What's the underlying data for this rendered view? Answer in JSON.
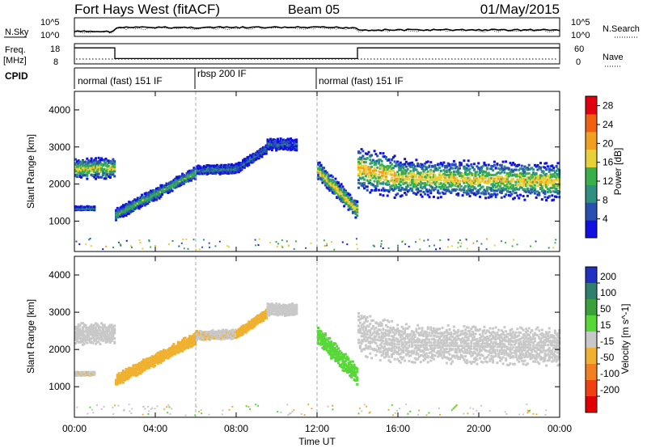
{
  "chart_data": {
    "type": "heatmap",
    "title": "Fort Hays West (fitACF)",
    "beam": "Beam 05",
    "date": "01/May/2015",
    "xlabel": "Time UT",
    "x_ticks": [
      "00:00",
      "04:00",
      "08:00",
      "12:00",
      "16:00",
      "20:00",
      "00:00"
    ],
    "xlim_hours": [
      0,
      24
    ],
    "grid": false,
    "noise_panel": {
      "left_label": "N.Sky",
      "right_label": "N.Search",
      "left_ticks": [
        "10^5",
        "10^0"
      ],
      "right_ticks": [
        "10^5",
        "10^0"
      ]
    },
    "freq_panel": {
      "left_label": "Freq.",
      "left_unit": "[MHz]",
      "left_ticks": [
        18,
        8
      ],
      "right_label": "Nave",
      "right_ticks": [
        60,
        0
      ],
      "freq_steps": [
        {
          "from": 0,
          "to": 2.0,
          "value": 17
        },
        {
          "from": 2.0,
          "to": 14.0,
          "value": 11
        },
        {
          "from": 14.0,
          "to": 24,
          "value": 17
        }
      ]
    },
    "cpid": {
      "label": "CPID",
      "segments": [
        {
          "from": 0,
          "to": 6.0,
          "label": "normal (fast) 151 IF"
        },
        {
          "from": 6.0,
          "to": 12.0,
          "label": "rbsp 200 IF"
        },
        {
          "from": 12.0,
          "to": 24,
          "label": "normal (fast) 151 IF"
        }
      ]
    },
    "power_panel": {
      "ylabel": "Slant Range [km]",
      "ylim": [
        180,
        4500
      ],
      "yticks": [
        1000,
        2000,
        3000,
        4000
      ],
      "colorbar_label": "Power [dB]",
      "colorbar_ticks": [
        4,
        8,
        12,
        16,
        20,
        24,
        28
      ],
      "colorbar_range": [
        0,
        30
      ],
      "colors": [
        "#1010e0",
        "#2850b0",
        "#2f9080",
        "#3ab04a",
        "#e8d038",
        "#f0a020",
        "#f06010",
        "#e00010"
      ]
    },
    "velocity_panel": {
      "ylabel": "Slant Range [km]",
      "ylim": [
        180,
        4500
      ],
      "yticks": [
        1000,
        2000,
        3000,
        4000
      ],
      "colorbar_label": "Velocity [m s^-1]",
      "colorbar_ticks": [
        200,
        100,
        50,
        15,
        -15,
        -50,
        -100,
        -200
      ],
      "colors": [
        "#2030c0",
        "#2f7f6f",
        "#3aa03a",
        "#58d838",
        "#c8c8c8",
        "#f0b030",
        "#f08020",
        "#f04010",
        "#e00000"
      ]
    },
    "echo_bands": [
      {
        "t0": 0.0,
        "t1": 2.0,
        "center_start": 2450,
        "center_end": 2450,
        "width": 450,
        "power": 14,
        "velocity": 0
      },
      {
        "t0": 0.0,
        "t1": 1.0,
        "center_start": 1380,
        "center_end": 1380,
        "width": 80,
        "power": 8,
        "velocity": -10
      },
      {
        "t0": 2.0,
        "t1": 6.0,
        "center_start": 1200,
        "center_end": 2350,
        "width": 260,
        "power": 11,
        "velocity": -40
      },
      {
        "t0": 6.0,
        "t1": 8.0,
        "center_start": 2400,
        "center_end": 2450,
        "width": 200,
        "power": 7,
        "velocity": -10
      },
      {
        "t0": 8.0,
        "t1": 9.5,
        "center_start": 2450,
        "center_end": 3000,
        "width": 200,
        "power": 6,
        "velocity": -30
      },
      {
        "t0": 9.5,
        "t1": 11.0,
        "center_start": 3100,
        "center_end": 3100,
        "width": 250,
        "power": 5,
        "velocity": 0
      },
      {
        "t0": 12.0,
        "t1": 14.0,
        "center_start": 2400,
        "center_end": 1300,
        "width": 400,
        "power": 15,
        "velocity": 30
      },
      {
        "t0": 14.0,
        "t1": 16.0,
        "center_start": 2450,
        "center_end": 2200,
        "width": 900,
        "power": 17,
        "velocity": 0
      },
      {
        "t0": 16.0,
        "t1": 24.0,
        "center_start": 2200,
        "center_end": 2100,
        "width": 800,
        "power": 15,
        "velocity": -5
      }
    ]
  }
}
